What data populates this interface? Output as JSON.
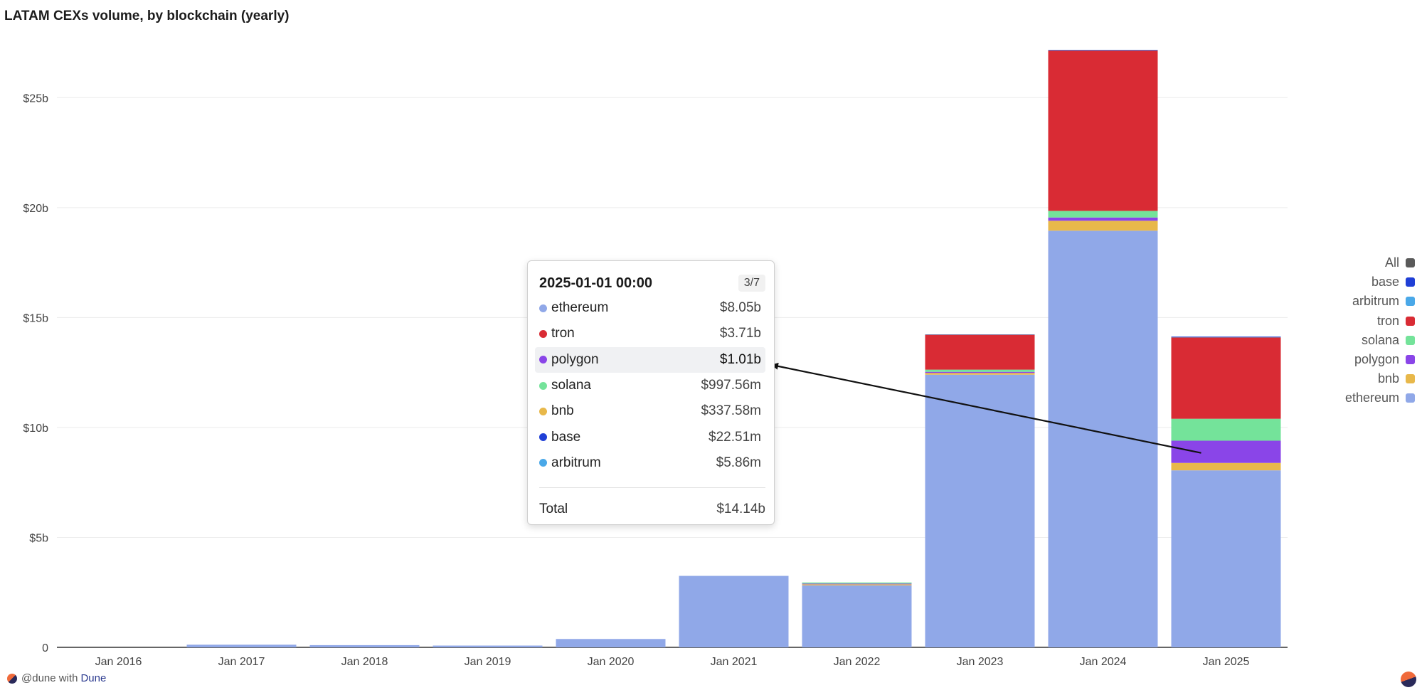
{
  "title": "LATAM CEXs volume, by blockchain (yearly)",
  "chart_data": {
    "type": "bar",
    "stacked": true,
    "title": "LATAM CEXs volume, by blockchain (yearly)",
    "xlabel": "",
    "ylabel": "",
    "ylim": [
      0,
      27.5
    ],
    "y_unit": "billions USD",
    "y_ticks": [
      {
        "value": 0,
        "label": "0"
      },
      {
        "value": 5,
        "label": "$5b"
      },
      {
        "value": 10,
        "label": "$10b"
      },
      {
        "value": 15,
        "label": "$15b"
      },
      {
        "value": 20,
        "label": "$20b"
      },
      {
        "value": 25,
        "label": "$25b"
      }
    ],
    "categories": [
      "Jan 2016",
      "Jan 2017",
      "Jan 2018",
      "Jan 2019",
      "Jan 2020",
      "Jan 2021",
      "Jan 2022",
      "Jan 2023",
      "Jan 2024",
      "Jan 2025"
    ],
    "series": [
      {
        "name": "ethereum",
        "color": "#90a8e8",
        "values": [
          0,
          0.12,
          0.1,
          0.08,
          0.38,
          3.25,
          2.82,
          12.4,
          18.95,
          8.05
        ]
      },
      {
        "name": "bnb",
        "color": "#e8b84a",
        "values": [
          0,
          0,
          0,
          0,
          0,
          0,
          0.05,
          0.08,
          0.45,
          0.338
        ]
      },
      {
        "name": "polygon",
        "color": "#8a45e8",
        "values": [
          0,
          0,
          0,
          0,
          0,
          0,
          0.03,
          0.05,
          0.15,
          1.01
        ]
      },
      {
        "name": "solana",
        "color": "#74e39a",
        "values": [
          0,
          0,
          0,
          0,
          0,
          0,
          0.05,
          0.1,
          0.3,
          0.998
        ]
      },
      {
        "name": "tron",
        "color": "#d92b34",
        "values": [
          0,
          0,
          0,
          0,
          0,
          0,
          0,
          1.6,
          7.3,
          3.71
        ]
      },
      {
        "name": "arbitrum",
        "color": "#4aa8e8",
        "values": [
          0,
          0,
          0,
          0,
          0,
          0,
          0,
          0.005,
          0.01,
          0.006
        ]
      },
      {
        "name": "base",
        "color": "#1f3fd6",
        "values": [
          0,
          0,
          0,
          0,
          0,
          0,
          0,
          0,
          0.01,
          0.023
        ]
      }
    ],
    "legend": {
      "placement": "right",
      "items": [
        {
          "name": "All",
          "color": "#5a5a5a"
        },
        {
          "name": "base",
          "color": "#1f3fd6"
        },
        {
          "name": "arbitrum",
          "color": "#4aa8e8"
        },
        {
          "name": "tron",
          "color": "#d92b34"
        },
        {
          "name": "solana",
          "color": "#74e39a"
        },
        {
          "name": "polygon",
          "color": "#8a45e8"
        },
        {
          "name": "bnb",
          "color": "#e8b84a"
        },
        {
          "name": "ethereum",
          "color": "#90a8e8"
        }
      ]
    }
  },
  "tooltip": {
    "date": "2025-01-01 00:00",
    "page": "3/7",
    "rows": [
      {
        "name": "ethereum",
        "color": "#90a8e8",
        "value": "$8.05b"
      },
      {
        "name": "tron",
        "color": "#d92b34",
        "value": "$3.71b"
      },
      {
        "name": "polygon",
        "color": "#8a45e8",
        "value": "$1.01b"
      },
      {
        "name": "solana",
        "color": "#74e39a",
        "value": "$997.56m"
      },
      {
        "name": "bnb",
        "color": "#e8b84a",
        "value": "$337.58m"
      },
      {
        "name": "base",
        "color": "#1f3fd6",
        "value": "$22.51m"
      },
      {
        "name": "arbitrum",
        "color": "#4aa8e8",
        "value": "$5.86m"
      }
    ],
    "highlighted": "polygon",
    "total_label": "Total",
    "total_value": "$14.14b"
  },
  "footer": {
    "prefix": "@dune with",
    "brand": "Dune"
  }
}
